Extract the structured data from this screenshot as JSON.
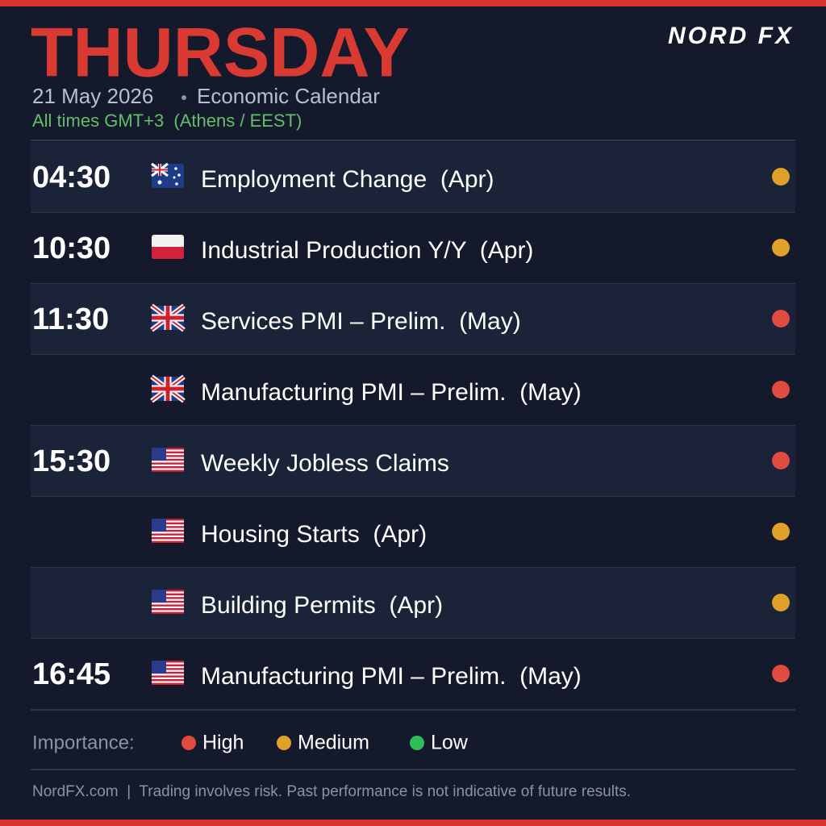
{
  "header": {
    "title": "THURSDAY",
    "date": "21 May 2026",
    "subtitle": "Economic Calendar",
    "timezone": "All times GMT+3  (Athens / EEST)",
    "logo": "NORD FX"
  },
  "rows": [
    {
      "time": "04:30",
      "event": "Employment Change  (Apr)",
      "importance": "Medium"
    },
    {
      "event": "Industrial Production Y/Y  (Apr)",
      "time": "10:30",
      "importance": "Medium"
    },
    {
      "time": "11:30",
      "event": "Services PMI – Prelim.  (May)",
      "importance": "High"
    },
    {
      "event": "Manufacturing PMI – Prelim.  (May)",
      "importance": "High"
    },
    {
      "time": "15:30",
      "event": "Weekly Jobless Claims",
      "importance": "High"
    },
    {
      "event": "Housing Starts  (Apr)",
      "importance": "Medium"
    },
    {
      "event": "Building Permits  (Apr)",
      "importance": "Medium"
    },
    {
      "time": "16:45",
      "event": "Manufacturing PMI – Prelim.  (May)",
      "importance": "High"
    }
  ],
  "legend": {
    "label": "Importance:",
    "levels": [
      {
        "name": "High",
        "color": "#e04a3f"
      },
      {
        "name": "Medium",
        "color": "#e0a02a"
      },
      {
        "name": "Low",
        "color": "#2fbf5a"
      }
    ]
  },
  "footer": "NordFX.com  |  Trading involves risk. Past performance is not indicative of future results."
}
